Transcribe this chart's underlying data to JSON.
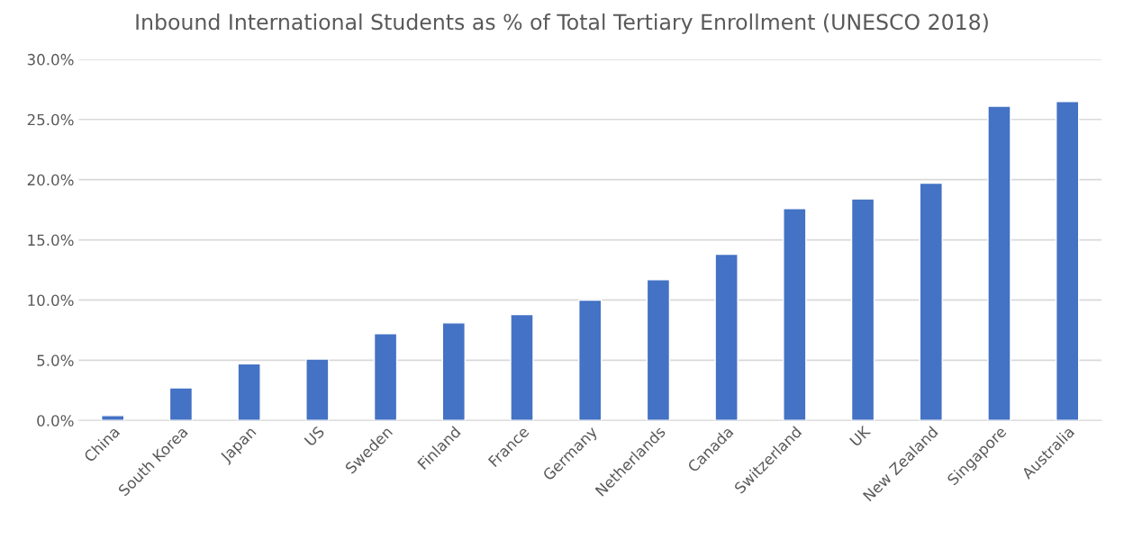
{
  "chart_data": {
    "type": "bar",
    "title": "Inbound International Students as % of Total Tertiary Enrollment (UNESCO 2018)",
    "categories": [
      "China",
      "South Korea",
      "Japan",
      "US",
      "Sweden",
      "Finland",
      "France",
      "Germany",
      "Netherlands",
      "Canada",
      "Switzerland",
      "UK",
      "New Zealand",
      "Singapore",
      "Australia"
    ],
    "values": [
      0.4,
      2.7,
      4.7,
      5.1,
      7.2,
      8.1,
      8.8,
      10.0,
      11.7,
      13.8,
      17.6,
      18.4,
      19.7,
      26.1,
      26.5
    ],
    "color": "#4472c4",
    "ylim": [
      0,
      30
    ],
    "yticks": [
      {
        "value": 0,
        "label": "0.0%"
      },
      {
        "value": 5,
        "label": "5.0%"
      },
      {
        "value": 10,
        "label": "10.0%"
      },
      {
        "value": 15,
        "label": "15.0%"
      },
      {
        "value": 20,
        "label": "20.0%"
      },
      {
        "value": 25,
        "label": "25.0%"
      },
      {
        "value": 30,
        "label": "30.0%"
      }
    ],
    "grid": "y"
  }
}
